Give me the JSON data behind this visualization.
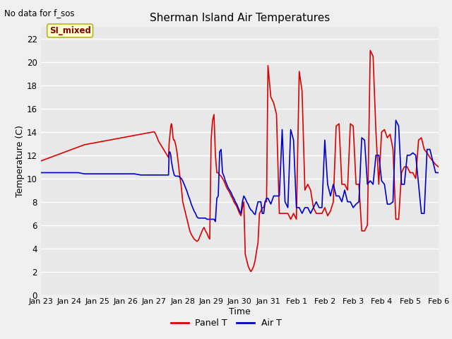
{
  "title": "Sherman Island Air Temperatures",
  "xlabel": "Time",
  "ylabel": "Temperature (C)",
  "no_data_text": "No data for f_sos",
  "label_text": "SI_mixed",
  "ylim": [
    0,
    23
  ],
  "yticks": [
    0,
    2,
    4,
    6,
    8,
    10,
    12,
    14,
    16,
    18,
    20,
    22
  ],
  "xtick_labels": [
    "Jan 23",
    "Jan 24",
    "Jan 25",
    "Jan 26",
    "Jan 27",
    "Jan 28",
    "Jan 29",
    "Jan 30",
    "Jan 31",
    "Feb 1",
    "Feb 2",
    "Feb 3",
    "Feb 4",
    "Feb 5",
    "Feb 6"
  ],
  "panel_color": "#dd0000",
  "air_color": "#0000cc",
  "bg_color": "#e8e8e8",
  "plot_bg": "#e8e8e8",
  "fig_bg": "#f0f0f0",
  "grid_color": "#ffffff",
  "legend_panel": "Panel T",
  "legend_air": "Air T",
  "panel_T_x": [
    0.0,
    0.22,
    0.44,
    0.66,
    0.88,
    1.1,
    1.32,
    1.54,
    1.76,
    1.98,
    2.2,
    2.42,
    2.64,
    2.86,
    3.08,
    3.3,
    3.52,
    3.74,
    3.96,
    4.0,
    4.05,
    4.1,
    4.15,
    4.2,
    4.25,
    4.3,
    4.35,
    4.4,
    4.45,
    4.5,
    4.52,
    4.54,
    4.56,
    4.58,
    4.6,
    4.62,
    4.64,
    4.66,
    4.68,
    4.7,
    4.72,
    4.74,
    4.76,
    4.78,
    4.8,
    4.82,
    4.84,
    4.86,
    4.88,
    4.9,
    4.92,
    4.94,
    4.96,
    4.98,
    5.0,
    5.05,
    5.1,
    5.15,
    5.2,
    5.25,
    5.3,
    5.35,
    5.4,
    5.45,
    5.5,
    5.55,
    5.6,
    5.65,
    5.7,
    5.75,
    5.8,
    5.85,
    5.9,
    5.95,
    6.0,
    6.05,
    6.1,
    6.15,
    6.2,
    6.25,
    6.3,
    6.35,
    6.4,
    6.45,
    6.5,
    6.55,
    6.6,
    6.65,
    6.7,
    6.75,
    6.8,
    6.85,
    6.9,
    6.95,
    7.0,
    7.05,
    7.1,
    7.15,
    7.2,
    7.25,
    7.3,
    7.35,
    7.4,
    7.45,
    7.5,
    7.55,
    7.6,
    7.65,
    7.7,
    7.75,
    7.8,
    7.85,
    7.9,
    7.95,
    8.0,
    8.1,
    8.2,
    8.3,
    8.4,
    8.5,
    8.6,
    8.7,
    8.8,
    8.9,
    9.0,
    9.1,
    9.2,
    9.3,
    9.4,
    9.5,
    9.6,
    9.7,
    9.8,
    9.9,
    10.0,
    10.1,
    10.2,
    10.3,
    10.4,
    10.5,
    10.6,
    10.7,
    10.8,
    10.9,
    11.0,
    11.1,
    11.2,
    11.3,
    11.4,
    11.5,
    11.6,
    11.7,
    11.8,
    11.9,
    12.0,
    12.1,
    12.2,
    12.3,
    12.4,
    12.5,
    12.6,
    12.7,
    12.8,
    12.9,
    13.0,
    13.1,
    13.2,
    13.3,
    13.4,
    13.5,
    13.6,
    13.7,
    13.8,
    13.9,
    14.0
  ],
  "panel_T_y": [
    11.5,
    11.7,
    11.9,
    12.1,
    12.3,
    12.5,
    12.7,
    12.9,
    13.0,
    13.1,
    13.2,
    13.3,
    13.4,
    13.5,
    13.6,
    13.7,
    13.8,
    13.9,
    14.0,
    14.0,
    13.8,
    13.5,
    13.2,
    13.0,
    12.8,
    12.6,
    12.4,
    12.2,
    12.0,
    11.8,
    13.0,
    13.5,
    14.0,
    14.5,
    14.7,
    14.5,
    14.0,
    13.5,
    13.3,
    13.3,
    13.2,
    13.0,
    12.8,
    12.5,
    12.2,
    11.8,
    11.4,
    11.0,
    10.5,
    10.2,
    9.8,
    9.5,
    9.0,
    8.5,
    8.0,
    7.5,
    7.0,
    6.5,
    6.0,
    5.5,
    5.2,
    5.0,
    4.8,
    4.7,
    4.6,
    4.7,
    5.0,
    5.3,
    5.6,
    5.8,
    5.5,
    5.3,
    5.0,
    4.8,
    13.4,
    15.0,
    15.5,
    12.0,
    10.5,
    10.5,
    10.3,
    10.2,
    10.0,
    9.8,
    9.5,
    9.2,
    9.0,
    8.8,
    8.5,
    8.3,
    8.0,
    7.8,
    7.6,
    7.3,
    7.0,
    6.8,
    7.5,
    8.0,
    3.5,
    3.0,
    2.5,
    2.2,
    2.0,
    2.2,
    2.5,
    3.0,
    3.8,
    4.5,
    7.0,
    7.2,
    7.5,
    7.5,
    8.0,
    8.0,
    19.7,
    17.0,
    16.5,
    15.5,
    7.0,
    7.0,
    7.0,
    7.0,
    6.5,
    7.0,
    6.5,
    19.2,
    17.5,
    9.0,
    9.5,
    9.0,
    7.5,
    7.0,
    7.0,
    7.0,
    7.5,
    6.8,
    7.2,
    8.0,
    14.5,
    14.7,
    9.5,
    9.5,
    9.0,
    14.7,
    14.5,
    9.5,
    9.5,
    5.5,
    5.5,
    6.0,
    21.0,
    20.5,
    14.0,
    9.5,
    14.0,
    14.2,
    13.5,
    13.8,
    12.5,
    6.5,
    6.5,
    10.5,
    11.0,
    11.0,
    10.5,
    10.5,
    10.0,
    13.3,
    13.5,
    12.5,
    12.2,
    11.8,
    11.5,
    11.2,
    11.0
  ],
  "air_T_x": [
    0.0,
    0.22,
    0.44,
    0.66,
    0.88,
    1.1,
    1.32,
    1.54,
    1.76,
    1.98,
    2.2,
    2.42,
    2.64,
    2.86,
    3.08,
    3.3,
    3.52,
    3.74,
    3.96,
    4.0,
    4.05,
    4.1,
    4.15,
    4.2,
    4.25,
    4.3,
    4.35,
    4.4,
    4.45,
    4.5,
    4.52,
    4.54,
    4.56,
    4.58,
    4.6,
    4.65,
    4.7,
    4.75,
    4.8,
    4.85,
    4.9,
    4.95,
    5.0,
    5.05,
    5.1,
    5.15,
    5.2,
    5.25,
    5.3,
    5.35,
    5.4,
    5.45,
    5.5,
    5.55,
    5.6,
    5.65,
    5.7,
    5.75,
    5.8,
    5.85,
    5.9,
    5.95,
    6.0,
    6.05,
    6.1,
    6.15,
    6.2,
    6.25,
    6.3,
    6.35,
    6.4,
    6.45,
    6.5,
    6.55,
    6.6,
    6.65,
    6.7,
    6.75,
    6.8,
    6.85,
    6.9,
    6.95,
    7.0,
    7.05,
    7.1,
    7.15,
    7.2,
    7.25,
    7.3,
    7.35,
    7.4,
    7.45,
    7.5,
    7.55,
    7.6,
    7.65,
    7.7,
    7.75,
    7.8,
    7.85,
    7.9,
    7.95,
    8.0,
    8.1,
    8.2,
    8.3,
    8.4,
    8.5,
    8.6,
    8.7,
    8.8,
    8.9,
    9.0,
    9.1,
    9.2,
    9.3,
    9.4,
    9.5,
    9.6,
    9.7,
    9.8,
    9.9,
    10.0,
    10.1,
    10.2,
    10.3,
    10.4,
    10.5,
    10.6,
    10.7,
    10.8,
    10.9,
    11.0,
    11.1,
    11.2,
    11.3,
    11.4,
    11.5,
    11.6,
    11.7,
    11.8,
    11.9,
    12.0,
    12.1,
    12.2,
    12.3,
    12.4,
    12.5,
    12.6,
    12.7,
    12.8,
    12.9,
    13.0,
    13.1,
    13.2,
    13.3,
    13.4,
    13.5,
    13.6,
    13.7,
    13.8,
    13.9,
    14.0
  ],
  "air_T_y": [
    10.5,
    10.5,
    10.5,
    10.5,
    10.5,
    10.5,
    10.5,
    10.4,
    10.4,
    10.4,
    10.4,
    10.4,
    10.4,
    10.4,
    10.4,
    10.4,
    10.3,
    10.3,
    10.3,
    10.3,
    10.3,
    10.3,
    10.3,
    10.3,
    10.3,
    10.3,
    10.3,
    10.3,
    10.3,
    10.3,
    12.2,
    12.3,
    12.2,
    12.0,
    11.5,
    10.8,
    10.3,
    10.2,
    10.2,
    10.2,
    10.1,
    10.0,
    9.8,
    9.5,
    9.2,
    8.9,
    8.5,
    8.2,
    7.8,
    7.5,
    7.2,
    7.0,
    6.7,
    6.6,
    6.6,
    6.6,
    6.6,
    6.6,
    6.6,
    6.5,
    6.5,
    6.5,
    6.5,
    6.5,
    6.5,
    6.3,
    8.3,
    8.5,
    12.3,
    12.5,
    10.5,
    10.2,
    9.8,
    9.5,
    9.2,
    9.0,
    8.8,
    8.5,
    8.3,
    8.0,
    7.8,
    7.5,
    7.2,
    7.0,
    8.0,
    8.5,
    8.3,
    8.0,
    7.8,
    7.5,
    7.3,
    7.2,
    7.0,
    6.9,
    7.5,
    8.0,
    8.0,
    8.0,
    7.0,
    7.0,
    8.0,
    8.3,
    8.3,
    7.8,
    8.5,
    8.5,
    8.5,
    14.2,
    8.0,
    7.5,
    14.2,
    13.3,
    7.5,
    7.5,
    7.0,
    7.5,
    7.5,
    7.0,
    7.5,
    8.0,
    7.5,
    7.5,
    13.3,
    9.5,
    8.5,
    9.5,
    8.5,
    8.5,
    8.0,
    9.0,
    8.0,
    8.0,
    7.5,
    7.8,
    8.0,
    13.5,
    13.3,
    9.5,
    9.8,
    9.5,
    12.0,
    12.0,
    9.8,
    9.5,
    7.8,
    7.8,
    8.0,
    15.0,
    14.5,
    9.5,
    9.5,
    12.0,
    12.0,
    12.2,
    12.0,
    9.5,
    7.0,
    7.0,
    12.5,
    12.5,
    11.5,
    10.5,
    10.5
  ]
}
